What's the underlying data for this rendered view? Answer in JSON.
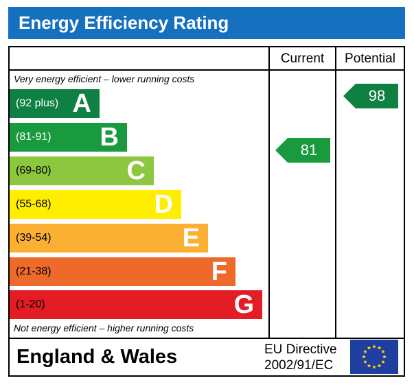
{
  "title": "Energy Efficiency Rating",
  "columns": {
    "current": "Current",
    "potential": "Potential"
  },
  "notes": {
    "top": "Very energy efficient – lower running costs",
    "bottom": "Not energy efficient – higher running costs"
  },
  "bands": [
    {
      "range": "(92 plus)",
      "letter": "A",
      "color": "#0e8142",
      "range_color": "#ffffff"
    },
    {
      "range": "(81-91)",
      "letter": "B",
      "color": "#1a9a3e",
      "range_color": "#ffffff"
    },
    {
      "range": "(69-80)",
      "letter": "C",
      "color": "#8dc63f",
      "range_color": "#000000"
    },
    {
      "range": "(55-68)",
      "letter": "D",
      "color": "#ffee00",
      "range_color": "#000000"
    },
    {
      "range": "(39-54)",
      "letter": "E",
      "color": "#fbb034",
      "range_color": "#000000"
    },
    {
      "range": "(21-38)",
      "letter": "F",
      "color": "#ee6a2a",
      "range_color": "#000000"
    },
    {
      "range": "(1-20)",
      "letter": "G",
      "color": "#e31d23",
      "range_color": "#000000"
    }
  ],
  "ratings": {
    "current": {
      "value": "81",
      "band": "B",
      "color": "#1a9a3e"
    },
    "potential": {
      "value": "98",
      "band": "A",
      "color": "#0e8142"
    }
  },
  "footer": {
    "region": "England & Wales",
    "directive_line1": "EU Directive",
    "directive_line2": "2002/91/EC"
  },
  "flag": {
    "name": "eu-flag-icon",
    "background": "#1f3fa0",
    "star_color": "#ffdd00"
  }
}
